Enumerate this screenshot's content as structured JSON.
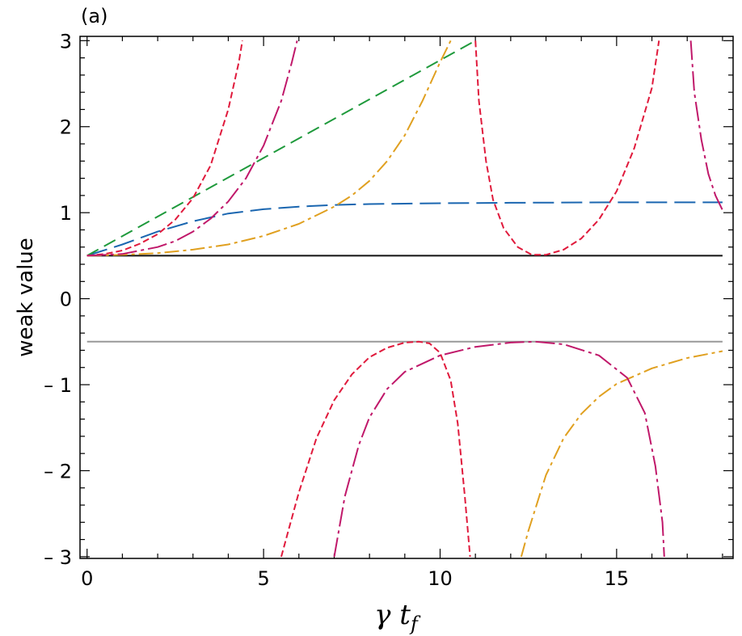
{
  "chart_data": {
    "type": "line",
    "panel_label": "(a)",
    "xlabel": "γ t_f",
    "xlabel_main": "γ t",
    "xlabel_sub": "f",
    "ylabel": "weak value",
    "xlim": [
      -0.2,
      18.3
    ],
    "ylim": [
      -3.02,
      3.05
    ],
    "xticks": [
      {
        "value": 0,
        "label": "0"
      },
      {
        "value": 5,
        "label": "5"
      },
      {
        "value": 10,
        "label": "10"
      },
      {
        "value": 15,
        "label": "15"
      }
    ],
    "yticks": [
      {
        "value": 3,
        "label": "3"
      },
      {
        "value": 2,
        "label": "2"
      },
      {
        "value": 1,
        "label": "1"
      },
      {
        "value": 0,
        "label": "0"
      },
      {
        "value": -1,
        "label": "– 1"
      },
      {
        "value": -2,
        "label": "– 2"
      },
      {
        "value": -3,
        "label": "– 3"
      }
    ],
    "grid": false,
    "series": [
      {
        "color": "#111111",
        "dash": "none",
        "points": [
          [
            0,
            0.5
          ],
          [
            18,
            0.5
          ]
        ]
      },
      {
        "color": "#999999",
        "dash": "none",
        "points": [
          [
            0,
            -0.5
          ],
          [
            18,
            -0.5
          ]
        ]
      },
      {
        "color": "#1a66b0",
        "dash": "26 9",
        "points": [
          [
            0,
            0.5
          ],
          [
            1,
            0.63
          ],
          [
            2,
            0.78
          ],
          [
            3,
            0.9
          ],
          [
            4,
            0.99
          ],
          [
            5,
            1.04
          ],
          [
            6,
            1.07
          ],
          [
            7,
            1.09
          ],
          [
            8,
            1.1
          ],
          [
            10,
            1.11
          ],
          [
            12,
            1.115
          ],
          [
            15,
            1.12
          ],
          [
            18,
            1.12
          ]
        ]
      },
      {
        "color": "#1f9a3c",
        "dash": "16 8",
        "points": [
          [
            0,
            0.5
          ],
          [
            11,
            3.0
          ]
        ]
      },
      {
        "color": "#e0a020",
        "dash": "18 5 4 5",
        "points": [
          [
            0,
            0.5
          ],
          [
            1,
            0.51
          ],
          [
            2,
            0.53
          ],
          [
            3,
            0.57
          ],
          [
            4,
            0.63
          ],
          [
            5,
            0.73
          ],
          [
            6,
            0.87
          ],
          [
            7,
            1.07
          ],
          [
            7.5,
            1.2
          ],
          [
            8,
            1.37
          ],
          [
            8.5,
            1.6
          ],
          [
            9,
            1.9
          ],
          [
            9.5,
            2.3
          ],
          [
            10,
            2.75
          ],
          [
            10.3,
            3.0
          ]
        ]
      },
      {
        "color": "#e0a020",
        "dash": "18 5 4 5",
        "points": [
          [
            12.3,
            -3.0
          ],
          [
            12.5,
            -2.7
          ],
          [
            13,
            -2.05
          ],
          [
            13.5,
            -1.62
          ],
          [
            14,
            -1.34
          ],
          [
            14.5,
            -1.14
          ],
          [
            15,
            -0.99
          ],
          [
            16,
            -0.81
          ],
          [
            17,
            -0.69
          ],
          [
            18,
            -0.61
          ]
        ]
      },
      {
        "color": "#e01a3c",
        "dash": "8 4",
        "points": [
          [
            0,
            0.5
          ],
          [
            0.5,
            0.52
          ],
          [
            1,
            0.56
          ],
          [
            1.5,
            0.64
          ],
          [
            2,
            0.75
          ],
          [
            2.5,
            0.92
          ],
          [
            3,
            1.17
          ],
          [
            3.5,
            1.55
          ],
          [
            4,
            2.2
          ],
          [
            4.3,
            2.75
          ],
          [
            4.4,
            3.0
          ]
        ]
      },
      {
        "color": "#e01a3c",
        "dash": "8 4",
        "points": [
          [
            5.5,
            -3.0
          ],
          [
            5.7,
            -2.7
          ],
          [
            6,
            -2.25
          ],
          [
            6.5,
            -1.62
          ],
          [
            7,
            -1.18
          ],
          [
            7.5,
            -0.88
          ],
          [
            8,
            -0.68
          ],
          [
            8.5,
            -0.57
          ],
          [
            9,
            -0.51
          ],
          [
            9.4,
            -0.5
          ],
          [
            9.7,
            -0.52
          ],
          [
            10,
            -0.63
          ],
          [
            10.3,
            -0.95
          ],
          [
            10.5,
            -1.45
          ],
          [
            10.7,
            -2.3
          ],
          [
            10.85,
            -3.0
          ]
        ]
      },
      {
        "color": "#e01a3c",
        "dash": "8 4",
        "points": [
          [
            11.0,
            3.0
          ],
          [
            11.1,
            2.3
          ],
          [
            11.3,
            1.6
          ],
          [
            11.5,
            1.15
          ],
          [
            11.8,
            0.82
          ],
          [
            12.2,
            0.6
          ],
          [
            12.6,
            0.51
          ],
          [
            13,
            0.51
          ],
          [
            13.5,
            0.57
          ],
          [
            14,
            0.7
          ],
          [
            14.5,
            0.92
          ],
          [
            15,
            1.25
          ],
          [
            15.5,
            1.75
          ],
          [
            16,
            2.45
          ],
          [
            16.2,
            3.0
          ]
        ]
      },
      {
        "color": "#c0186a",
        "dash": "24 5 4 5",
        "points": [
          [
            0,
            0.5
          ],
          [
            1,
            0.52
          ],
          [
            2,
            0.6
          ],
          [
            2.5,
            0.67
          ],
          [
            3,
            0.78
          ],
          [
            3.5,
            0.93
          ],
          [
            4,
            1.13
          ],
          [
            4.5,
            1.4
          ],
          [
            5,
            1.78
          ],
          [
            5.5,
            2.3
          ],
          [
            5.8,
            2.75
          ],
          [
            5.95,
            3.0
          ]
        ]
      },
      {
        "color": "#c0186a",
        "dash": "24 5 4 5",
        "points": [
          [
            7.0,
            -3.0
          ],
          [
            7.3,
            -2.3
          ],
          [
            7.7,
            -1.7
          ],
          [
            8,
            -1.38
          ],
          [
            8.5,
            -1.05
          ],
          [
            9,
            -0.85
          ],
          [
            10,
            -0.66
          ],
          [
            11,
            -0.56
          ],
          [
            12,
            -0.51
          ],
          [
            12.7,
            -0.5
          ],
          [
            13.5,
            -0.53
          ],
          [
            14.5,
            -0.66
          ],
          [
            15.3,
            -0.92
          ],
          [
            15.8,
            -1.33
          ],
          [
            16.1,
            -1.95
          ],
          [
            16.3,
            -2.6
          ],
          [
            16.35,
            -3.0
          ]
        ]
      },
      {
        "color": "#c0186a",
        "dash": "24 5 4 5",
        "points": [
          [
            17.1,
            3.0
          ],
          [
            17.2,
            2.4
          ],
          [
            17.4,
            1.85
          ],
          [
            17.6,
            1.45
          ],
          [
            17.8,
            1.2
          ],
          [
            18,
            1.03
          ]
        ]
      }
    ]
  }
}
